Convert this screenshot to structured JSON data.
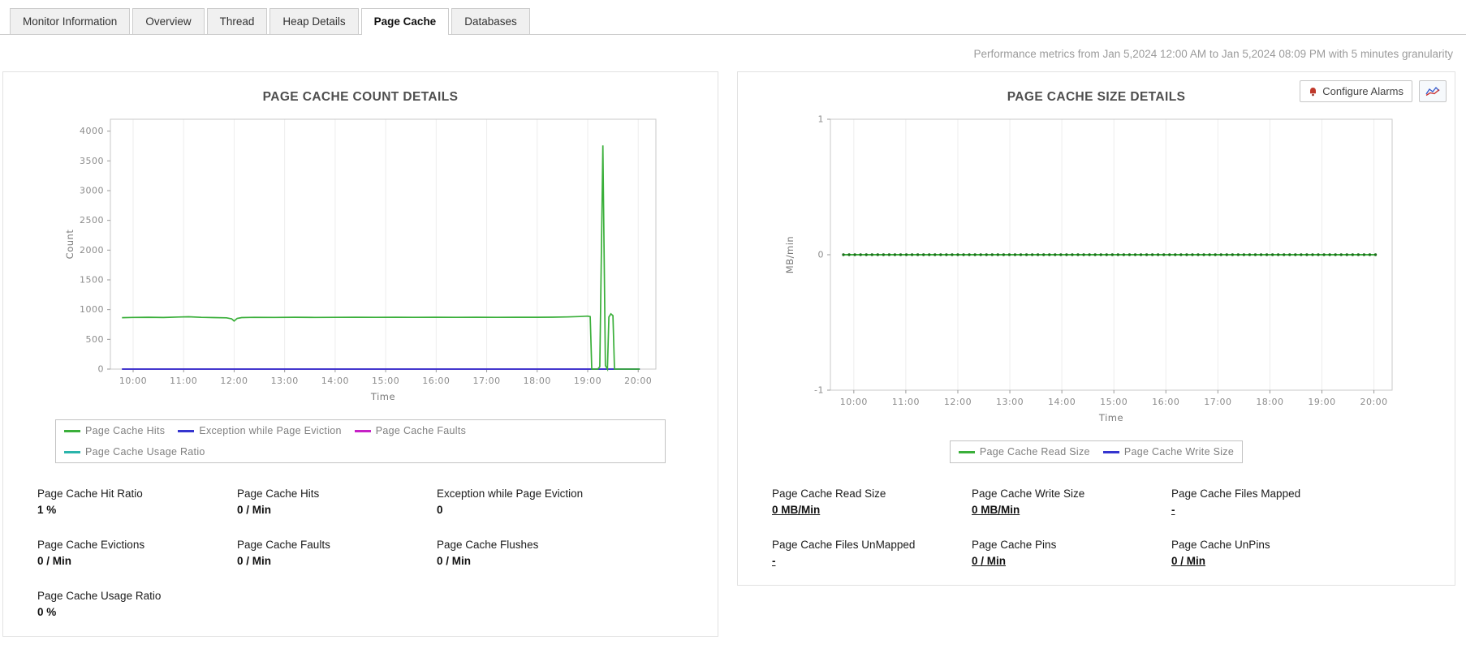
{
  "tabs": [
    {
      "label": "Monitor Information",
      "active": false
    },
    {
      "label": "Overview",
      "active": false
    },
    {
      "label": "Thread",
      "active": false
    },
    {
      "label": "Heap Details",
      "active": false
    },
    {
      "label": "Page Cache",
      "active": true
    },
    {
      "label": "Databases",
      "active": false
    }
  ],
  "header": {
    "metrics_note": "Performance metrics from Jan 5,2024 12:00 AM to Jan 5,2024 08:09 PM with 5 minutes granularity"
  },
  "toolbar": {
    "configure_alarms_label": "Configure Alarms"
  },
  "panels": {
    "count": {
      "stats": [
        {
          "label": "Page Cache Hit Ratio",
          "value": "1 %"
        },
        {
          "label": "Page Cache Hits",
          "value": "0 / Min"
        },
        {
          "label": "Exception while Page Eviction",
          "value": "0"
        },
        {
          "label": "Page Cache Evictions",
          "value": "0 / Min"
        },
        {
          "label": "Page Cache Faults",
          "value": "0 / Min"
        },
        {
          "label": "Page Cache Flushes",
          "value": "0 / Min"
        },
        {
          "label": "Page Cache Usage Ratio",
          "value": "0 %"
        }
      ]
    },
    "size": {
      "stats": [
        {
          "label": "Page Cache Read Size",
          "value": "0 MB/Min",
          "link": true
        },
        {
          "label": "Page Cache Write Size",
          "value": "0 MB/Min",
          "link": true
        },
        {
          "label": "Page Cache Files Mapped",
          "value": "-",
          "link": true
        },
        {
          "label": "Page Cache Files UnMapped",
          "value": "-",
          "link": true
        },
        {
          "label": "Page Cache Pins",
          "value": "0 / Min",
          "link": true
        },
        {
          "label": "Page Cache UnPins",
          "value": "0 / Min",
          "link": true
        }
      ]
    }
  },
  "chart_data": [
    {
      "id": "count",
      "type": "line",
      "title": "PAGE CACHE COUNT DETAILS",
      "xlabel": "Time",
      "ylabel": "Count",
      "ylim": [
        0,
        4200
      ],
      "yticks": [
        0,
        500,
        1000,
        1500,
        2000,
        2500,
        3000,
        3500,
        4000
      ],
      "xlim": [
        9.55,
        20.35
      ],
      "xticks": [
        10,
        11,
        12,
        13,
        14,
        15,
        16,
        17,
        18,
        19,
        20
      ],
      "xtick_labels": [
        "10:00",
        "11:00",
        "12:00",
        "13:00",
        "14:00",
        "15:00",
        "16:00",
        "17:00",
        "18:00",
        "19:00",
        "20:00"
      ],
      "grid": "vertical",
      "legend_position": "bottom-left",
      "legend_break_after": 3,
      "series": [
        {
          "name": "Page Cache Hits",
          "color": "#3aaf3a",
          "width": 1.7,
          "points": [
            [
              9.78,
              865
            ],
            [
              10.0,
              868
            ],
            [
              10.3,
              872
            ],
            [
              10.6,
              867
            ],
            [
              10.9,
              876
            ],
            [
              11.1,
              880
            ],
            [
              11.35,
              870
            ],
            [
              11.6,
              866
            ],
            [
              11.85,
              862
            ],
            [
              11.95,
              846
            ],
            [
              12.0,
              808
            ],
            [
              12.06,
              852
            ],
            [
              12.15,
              866
            ],
            [
              12.4,
              870
            ],
            [
              12.8,
              868
            ],
            [
              13.2,
              871
            ],
            [
              13.6,
              869
            ],
            [
              14.0,
              870
            ],
            [
              14.4,
              871
            ],
            [
              14.8,
              870
            ],
            [
              15.2,
              871
            ],
            [
              15.6,
              870
            ],
            [
              16.0,
              871
            ],
            [
              16.4,
              870
            ],
            [
              16.8,
              871
            ],
            [
              17.2,
              870
            ],
            [
              17.6,
              872
            ],
            [
              18.0,
              871
            ],
            [
              18.3,
              873
            ],
            [
              18.6,
              877
            ],
            [
              18.85,
              884
            ],
            [
              19.0,
              890
            ],
            [
              19.05,
              882
            ],
            [
              19.08,
              0
            ],
            [
              19.2,
              0
            ],
            [
              19.24,
              40
            ],
            [
              19.3,
              3760
            ],
            [
              19.35,
              60
            ],
            [
              19.39,
              0
            ],
            [
              19.42,
              875
            ],
            [
              19.46,
              928
            ],
            [
              19.5,
              898
            ],
            [
              19.53,
              0
            ],
            [
              19.65,
              0
            ],
            [
              19.85,
              0
            ],
            [
              20.03,
              0
            ]
          ]
        },
        {
          "name": "Exception while Page Eviction",
          "color": "#3535cf",
          "width": 1.7,
          "points": [
            [
              9.78,
              0
            ],
            [
              20.03,
              0
            ]
          ]
        },
        {
          "name": "Page Cache Faults",
          "color": "#c621c6",
          "width": 1.7,
          "points": [
            [
              9.78,
              0
            ],
            [
              20.03,
              0
            ]
          ]
        },
        {
          "name": "Page Cache Usage Ratio",
          "color": "#2ab4ab",
          "width": 1.7,
          "points": [
            [
              9.78,
              0
            ],
            [
              20.03,
              0
            ]
          ]
        }
      ]
    },
    {
      "id": "size",
      "type": "line",
      "title": "PAGE CACHE SIZE DETAILS",
      "xlabel": "Time",
      "ylabel": "MB/min",
      "ylim": [
        -1,
        1
      ],
      "yticks": [
        -1,
        0,
        1
      ],
      "xlim": [
        9.55,
        20.35
      ],
      "xticks": [
        10,
        11,
        12,
        13,
        14,
        15,
        16,
        17,
        18,
        19,
        20
      ],
      "xtick_labels": [
        "10:00",
        "11:00",
        "12:00",
        "13:00",
        "14:00",
        "15:00",
        "16:00",
        "17:00",
        "18:00",
        "19:00",
        "20:00"
      ],
      "grid": "vertical",
      "legend_position": "bottom-center",
      "series": [
        {
          "name": "Page Cache Read Size",
          "color": "#3aaf3a",
          "marker_color": "#1e6e1e",
          "markers": true,
          "width": 2,
          "points": [
            [
              9.8,
              0
            ],
            [
              20.03,
              0
            ]
          ]
        },
        {
          "name": "Page Cache Write Size",
          "color": "#3535cf",
          "width": 2,
          "points": [
            [
              9.8,
              0
            ],
            [
              20.03,
              0
            ]
          ]
        }
      ]
    }
  ]
}
